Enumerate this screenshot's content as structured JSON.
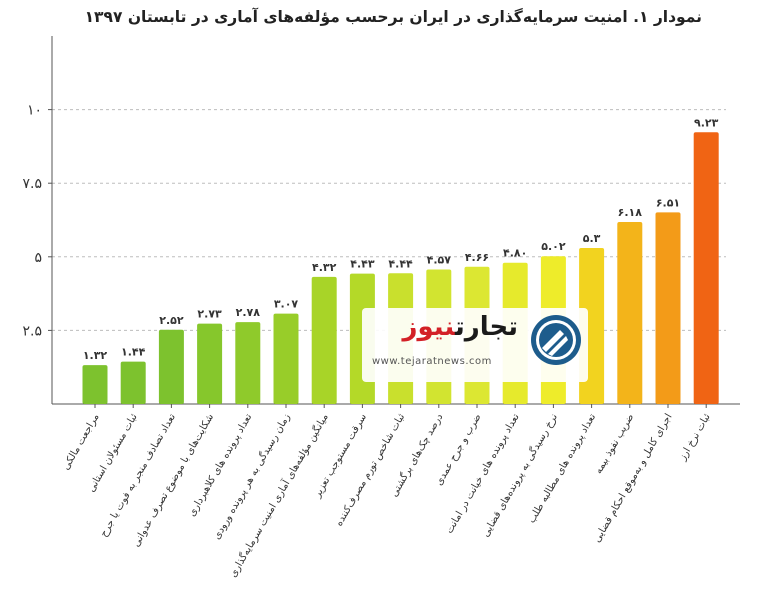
{
  "title": "نمودار ۱. امنیت سرمایه‌گذاری در ایران برحسب مؤلفه‌های آماری در تابستان ۱۳۹۷",
  "watermark": {
    "brand_part1": "تجارت",
    "brand_part2": "نیوز",
    "url": "www.tejaratnews.com"
  },
  "chart_data": {
    "type": "bar",
    "title": "نمودار ۱. امنیت سرمایه‌گذاری در ایران برحسب مؤلفه‌های آماری در تابستان ۱۳۹۷",
    "xlabel": "",
    "ylabel": "",
    "ylim": [
      0,
      12.5
    ],
    "yticks": [
      2.5,
      5,
      7.5,
      10
    ],
    "ytick_labels": [
      "۲.۵",
      "۵",
      "۷.۵",
      "۱۰"
    ],
    "grid": true,
    "categories": [
      "مراجعت مالکی",
      "ثبات مسئولان استانی",
      "تعداد تصادف منجر به فوت یا جرح",
      "شکایت‌های با موضوع تصرف عدوانی",
      "تعداد پرونده های کلاهبرداری",
      "زمان رسیدگی به هر پرونده ورودی",
      "میانگین مؤلفه‌های آماری امنیت سرمایه‌گذاری",
      "سرقت مستوجب تعزیر",
      "ثبات شاخص تورم مصرف‌کننده",
      "درصد چک‌های برگشتی",
      "ضرب و جرح عمدی",
      "تعداد پرونده های خیانت در امانت",
      "نرخ رسیدگی به پرونده‌های قضایی",
      "تعداد پرونده های مطالبه طلب",
      "ضریب نفوذ بیمه",
      "اجرای کامل و به‌موقع احکام قضایی",
      "ثبات نرخ ارز"
    ],
    "values": [
      1.32,
      1.44,
      2.52,
      2.73,
      2.78,
      3.07,
      4.32,
      4.43,
      4.44,
      4.57,
      4.66,
      4.8,
      5.02,
      5.3,
      6.18,
      6.51,
      9.23
    ],
    "value_labels": [
      "۱.۳۲",
      "۱.۴۴",
      "۲.۵۲",
      "۲.۷۳",
      "۲.۷۸",
      "۳.۰۷",
      "۴.۳۲",
      "۴.۴۳",
      "۴.۴۴",
      "۴.۵۷",
      "۴.۶۶",
      "۴.۸۰",
      "۵.۰۲",
      "۵.۳",
      "۶.۱۸",
      "۶.۵۱",
      "۹.۲۳"
    ],
    "colors": [
      "#7dc22e",
      "#7dc22e",
      "#7dc22e",
      "#86c72c",
      "#8fca2b",
      "#98cd29",
      "#a8d428",
      "#b4d928",
      "#c9e02d",
      "#d2e430",
      "#dce732",
      "#e6ea2c",
      "#eeec2a",
      "#f2d31f",
      "#f3b41a",
      "#f39b18",
      "#f06414"
    ]
  }
}
